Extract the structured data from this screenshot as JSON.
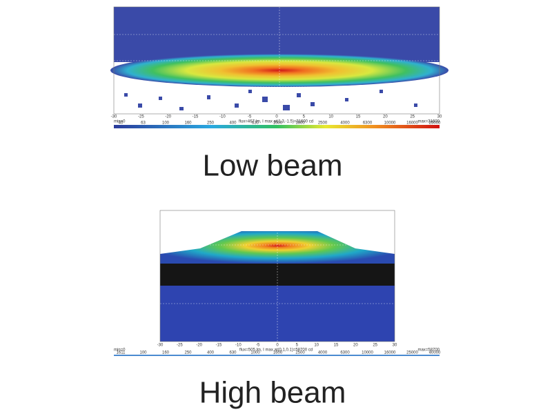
{
  "panels": [
    {
      "caption": "Low beam",
      "xticks": [
        "-30",
        "-25",
        "-20",
        "-15",
        "-10",
        "-5",
        "0",
        "5",
        "10",
        "15",
        "20",
        "25",
        "30"
      ],
      "info": "flux=467 lm, I max at(1.3,-1.5)=31600 cd",
      "min_label": "min=0",
      "max_label": "max=31600",
      "scale": [
        "40",
        "63",
        "100",
        "160",
        "250",
        "400",
        "630",
        "1000",
        "1600",
        "2500",
        "4000",
        "6300",
        "10000",
        "16000",
        "25000"
      ]
    },
    {
      "caption": "High beam",
      "xticks": [
        "-30",
        "-25",
        "-20",
        "-15",
        "-10",
        "-5",
        "0",
        "5",
        "10",
        "15",
        "20",
        "25",
        "30"
      ],
      "info": "flux=505 lm, I max at(0.1,0.1)=58700 cd",
      "min_label": "min=0",
      "max_label": "max=58700",
      "scale": [
        "1611",
        "100",
        "160",
        "250",
        "400",
        "630",
        "1000",
        "1600",
        "2500",
        "4000",
        "6300",
        "10000",
        "16000",
        "25000",
        "40000"
      ]
    }
  ]
}
